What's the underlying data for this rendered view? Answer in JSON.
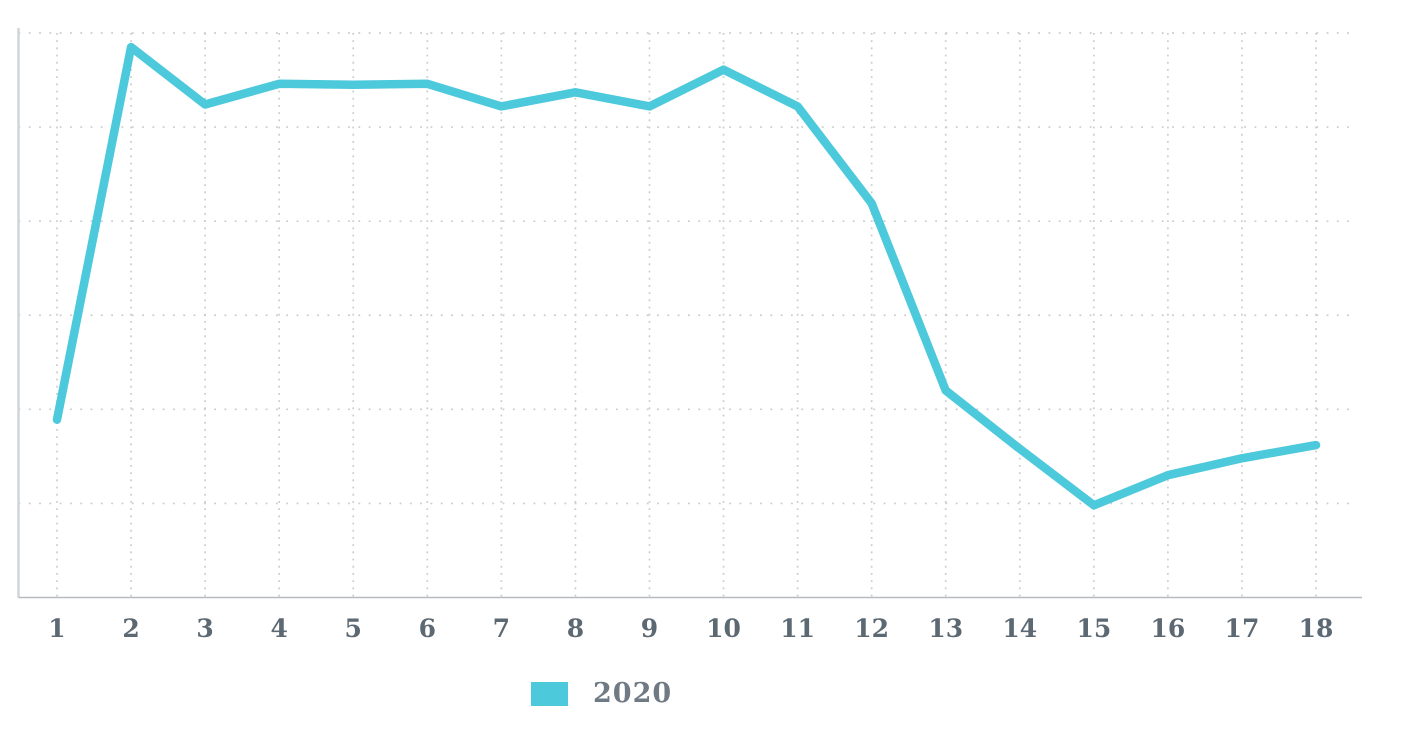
{
  "chart_data": {
    "type": "line",
    "x": [
      1,
      2,
      3,
      4,
      5,
      6,
      7,
      8,
      9,
      10,
      11,
      12,
      13,
      14,
      15,
      16,
      17,
      18
    ],
    "series": [
      {
        "name": "2020",
        "values": [
          1.89,
          5.85,
          5.24,
          5.46,
          5.45,
          5.46,
          5.22,
          5.37,
          5.22,
          5.61,
          5.22,
          4.19,
          2.2,
          1.58,
          0.98,
          1.3,
          1.48,
          1.62
        ]
      }
    ],
    "title": "",
    "xlabel": "",
    "ylabel": "",
    "xlim": [
      1,
      18
    ],
    "ylim": [
      0,
      6
    ],
    "y_gridline_count": 7,
    "y_tick_labels_visible": false,
    "grid": true,
    "grid_style": "dotted",
    "legend_position": "bottom"
  },
  "legend": {
    "label": "2020"
  },
  "colors": {
    "line": "#4dc9dc",
    "legend_swatch": "#4dc9dc",
    "grid_dots": "#c9cccf",
    "axis_vertical": "#d2d5d8",
    "axis_horizontal": "#b7bbbf",
    "tick_label": "#5c6872",
    "legend_label": "#6f7a84",
    "background": "#ffffff"
  }
}
